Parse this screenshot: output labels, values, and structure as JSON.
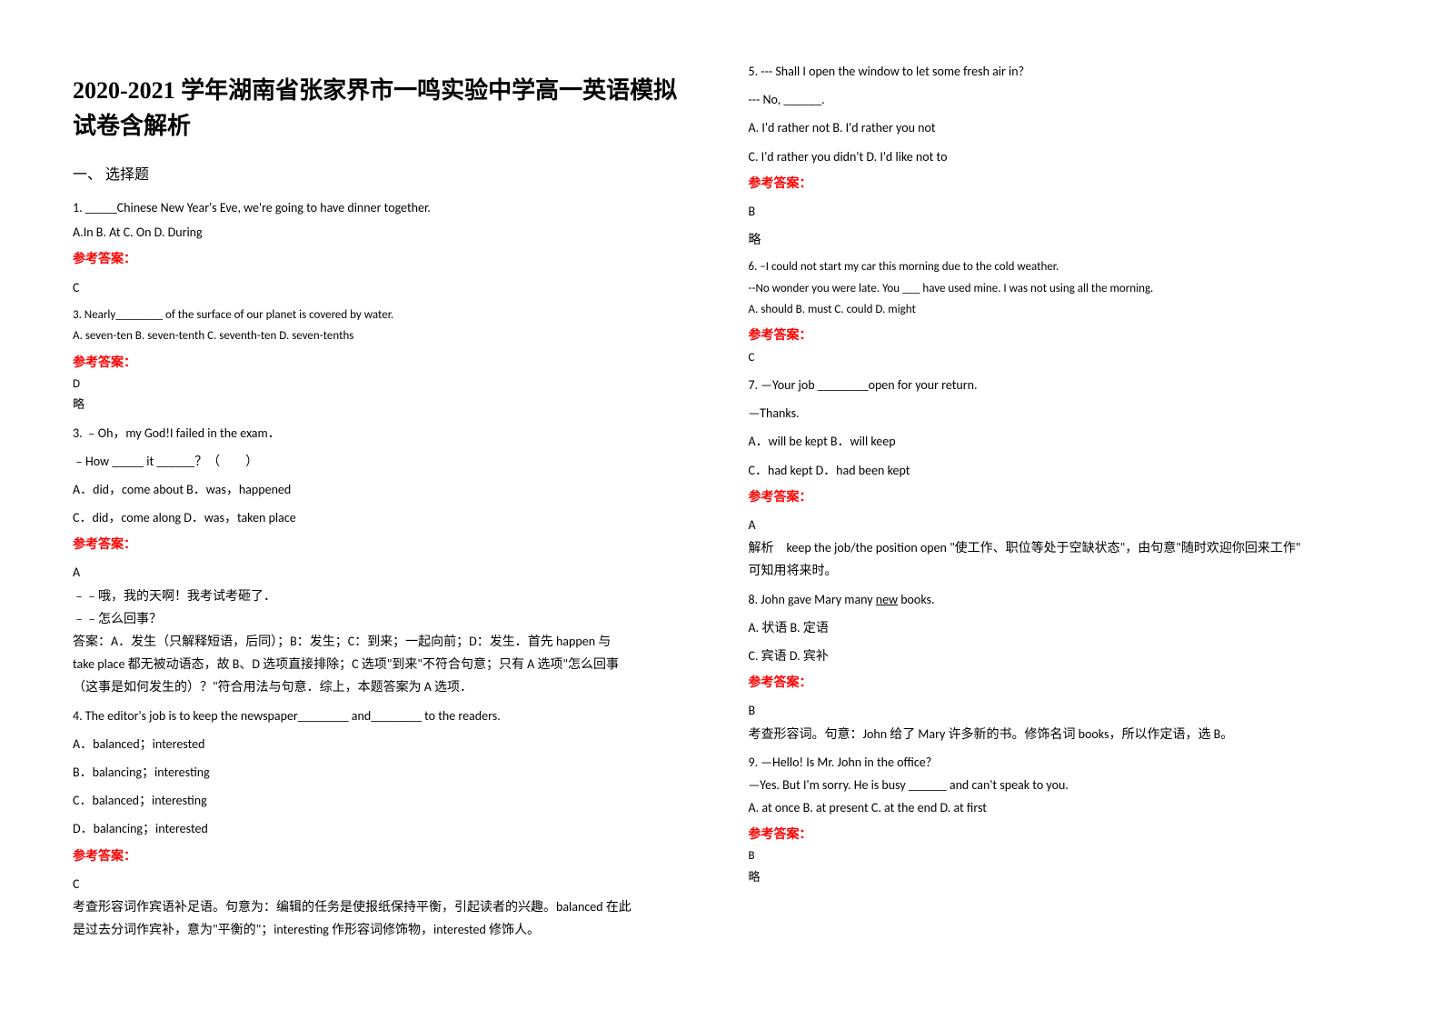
{
  "title": "2020-2021 学年湖南省张家界市一鸣实验中学高一英语模拟试卷含解析",
  "section1": "一、 选择题",
  "answer_label": "参考答案：",
  "slight_note": "略",
  "q1": {
    "stem": "1. _____Chinese New Year's Eve, we're going to have dinner together.",
    "opts": "  A.In        B. At        C. On        D. During",
    "ans": "C"
  },
  "q3a": {
    "stem": "3. Nearly________ of the surface of our planet is covered by water.",
    "opts": "      A. seven-ten    B. seven-tenth    C. seventh-ten    D. seven-tenths",
    "ans": "D"
  },
  "q3b": {
    "line1": "3. ﹣Oh，my God!I failed in the exam．",
    "line2": "﹣How _____ it ______？（　　）",
    "optsA": "A．did，come about    B．was，happened",
    "optsB": "C．did，come along    D．was，taken place",
    "ans": "A",
    "exp1": "﹣﹣哦，我的天啊！我考试考砸了．",
    "exp2": "﹣﹣怎么回事？",
    "exp3": "答案：A．发生（只解释短语，后同）；B：发生；C：到来；一起向前；D：发生．首先 happen 与",
    "exp4": "take place 都无被动语态，故 B、D 选项直接排除；C 选项\"到来\"不符合句意；只有 A 选项\"怎么回事",
    "exp5": "（这事是如何发生的）？\"符合用法与句意．综上，本题答案为 A 选项．"
  },
  "q4": {
    "stem": "4. The editor's job is to keep the newspaper________ and________ to the readers.",
    "a": "A．balanced；interested",
    "b": "B．balancing；interesting",
    "c": "C．balanced；interesting",
    "d": "D．balancing；interested",
    "ans": "C",
    "exp1": "考查形容词作宾语补足语。句意为：编辑的任务是使报纸保持平衡，引起读者的兴趣。balanced 在此",
    "exp2": "是过去分词作宾补，意为\"平衡的\"；interesting 作形容词修饰物，interested 修饰人。"
  },
  "q5": {
    "stem": "5. --- Shall I open the window to let some fresh air in?",
    "line2": "    --- No, ______.",
    "a": "  A. I'd rather not            B. I'd rather you not",
    "b": "  C. I'd rather you didn't        D. I'd like not to",
    "ans": "B"
  },
  "q6": {
    "l1": "6. –I could not start my car this morning due to the cold weather.",
    "l2": "   --No wonder you were late. You ___ have used mine. I was not using all the morning.",
    "l3": "       A. should   B. must   C. could   D. might",
    "ans": "C"
  },
  "q7": {
    "l1": "7. —Your job ________open for your return.",
    "l2": "—Thanks.",
    "a": "A．will be kept                           B．will keep",
    "b": "C．had kept                    D．had been kept",
    "ans": "A",
    "exp1": "解析　keep the job/the position open \"使工作、职位等处于空缺状态\"，由句意\"随时欢迎你回来工作\"",
    "exp2": "可知用将来时。"
  },
  "q8": {
    "stem_pre": "8. John gave Mary many ",
    "stem_und": "new",
    "stem_post": " books.",
    "a": "A. 状语         B. 定语",
    "b": "C. 宾语         D. 宾补",
    "ans": "B",
    "exp": "考查形容词。句意：John 给了 Mary 许多新的书。修饰名词 books，所以作定语，选 B。"
  },
  "q9": {
    "l1": "9. —Hello! Is Mr. John in the office?",
    "l2": "     —Yes. But I'm sorry. He is busy ______ and can't speak to you.",
    "opts": "A. at once         B. at present         C. at the end         D. at first",
    "ans": "B"
  }
}
